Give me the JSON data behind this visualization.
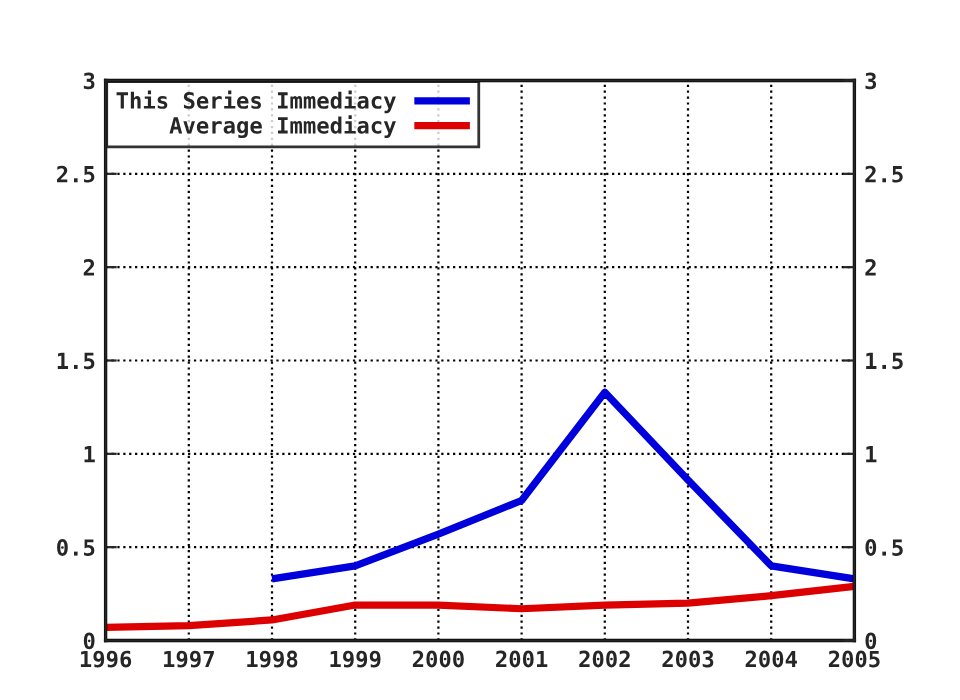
{
  "chart_data": {
    "type": "line",
    "x": [
      1996,
      1997,
      1998,
      1999,
      2000,
      2001,
      2002,
      2003,
      2004,
      2005
    ],
    "series": [
      {
        "name": "This Series Immediacy",
        "color": "#0000dd",
        "values": [
          null,
          null,
          0.33,
          0.4,
          0.57,
          0.75,
          1.33,
          0.86,
          0.4,
          0.33
        ]
      },
      {
        "name": "Average Immediacy",
        "color": "#dd0000",
        "values": [
          0.07,
          0.08,
          0.11,
          0.19,
          0.19,
          0.17,
          0.19,
          0.2,
          0.24,
          0.29
        ]
      }
    ],
    "xlim": [
      1996,
      2005
    ],
    "xticks": [
      1996,
      1997,
      1998,
      1999,
      2000,
      2001,
      2002,
      2003,
      2004,
      2005
    ],
    "ylim": [
      0,
      3
    ],
    "yticks": [
      0,
      0.5,
      1,
      1.5,
      2,
      2.5,
      3
    ],
    "y2lim": [
      0,
      3
    ],
    "y2ticks": [
      0,
      0.5,
      1,
      1.5,
      2,
      2.5,
      3
    ],
    "grid": true,
    "legend": "top left",
    "marker": "none",
    "line_style": "solid"
  }
}
